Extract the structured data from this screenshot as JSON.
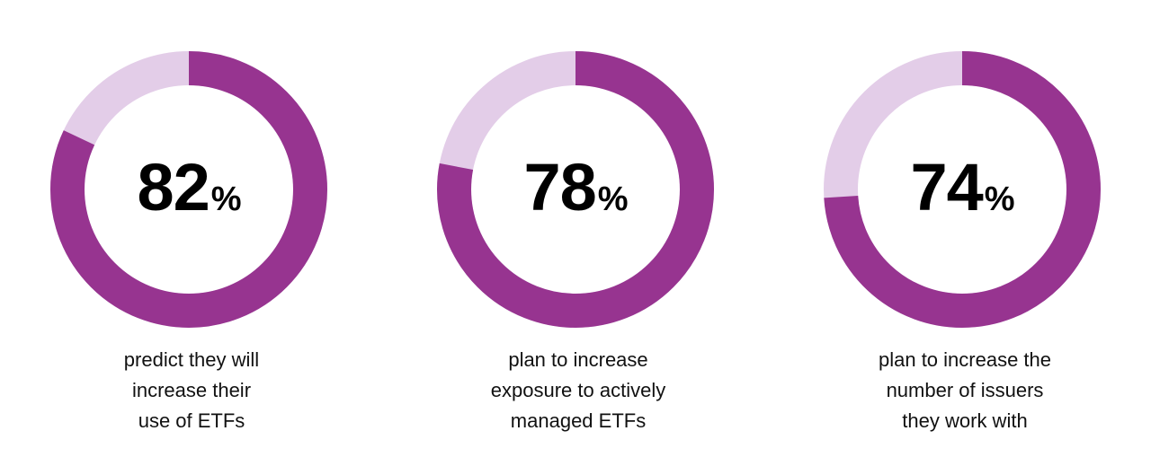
{
  "chart_data": [
    {
      "type": "pie",
      "value": 82,
      "value_label": "82",
      "unit": "%",
      "caption": [
        "predict they will",
        "increase their",
        "use of ETFs"
      ]
    },
    {
      "type": "pie",
      "value": 78,
      "value_label": "78",
      "unit": "%",
      "caption": [
        "plan to increase",
        "exposure to actively",
        "managed ETFs"
      ]
    },
    {
      "type": "pie",
      "value": 74,
      "value_label": "74",
      "unit": "%",
      "caption": [
        "plan to increase the",
        "number of issuers",
        "they work with"
      ]
    }
  ],
  "colors": {
    "fill": "#973490",
    "track": "#e3cde8"
  }
}
